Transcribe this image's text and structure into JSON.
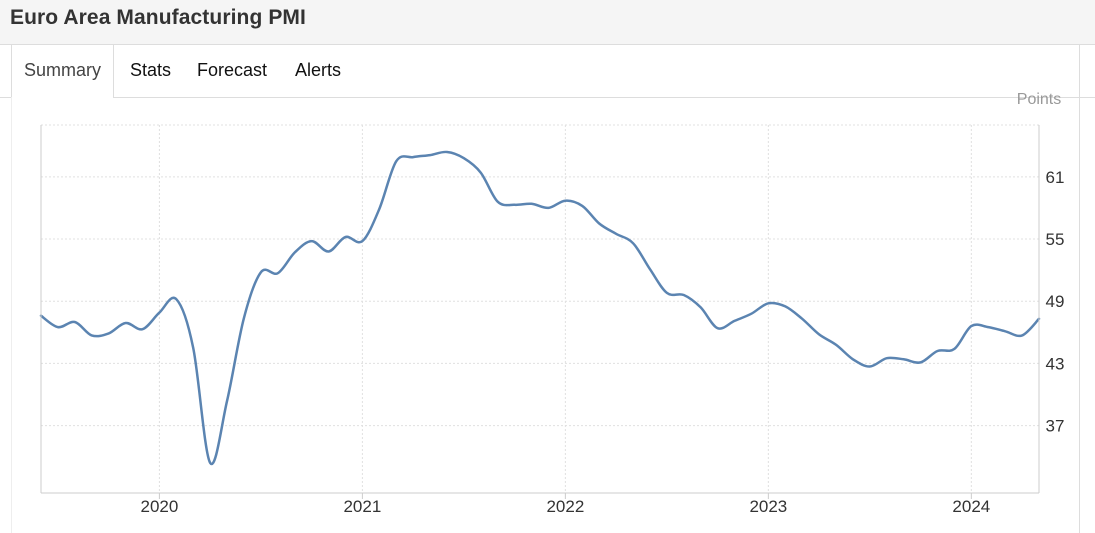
{
  "page": {
    "title": "Euro Area Manufacturing PMI"
  },
  "tabs": [
    {
      "label": "Summary",
      "active": true
    },
    {
      "label": "Stats",
      "active": false
    },
    {
      "label": "Forecast",
      "active": false
    },
    {
      "label": "Alerts",
      "active": false
    }
  ],
  "colors": {
    "line": "#5b84b1",
    "grid": "#e0e0e0",
    "axis": "#cccccc"
  },
  "chart_data": {
    "type": "line",
    "title": "",
    "xlabel": "",
    "ylabel": "Points",
    "grid": true,
    "xlim": [
      "2019-06",
      "2024-05"
    ],
    "ylim": [
      30.5,
      66
    ],
    "yticks": [
      37,
      43,
      49,
      55,
      61
    ],
    "xticks": [
      "2020",
      "2021",
      "2022",
      "2023",
      "2024"
    ],
    "series": [
      {
        "name": "",
        "x": [
          "2019-06",
          "2019-07",
          "2019-08",
          "2019-09",
          "2019-10",
          "2019-11",
          "2019-12",
          "2020-01",
          "2020-02",
          "2020-03",
          "2020-04",
          "2020-05",
          "2020-06",
          "2020-07",
          "2020-08",
          "2020-09",
          "2020-10",
          "2020-11",
          "2020-12",
          "2021-01",
          "2021-02",
          "2021-03",
          "2021-04",
          "2021-05",
          "2021-06",
          "2021-07",
          "2021-08",
          "2021-09",
          "2021-10",
          "2021-11",
          "2021-12",
          "2022-01",
          "2022-02",
          "2022-03",
          "2022-04",
          "2022-05",
          "2022-06",
          "2022-07",
          "2022-08",
          "2022-09",
          "2022-10",
          "2022-11",
          "2022-12",
          "2023-01",
          "2023-02",
          "2023-03",
          "2023-04",
          "2023-05",
          "2023-06",
          "2023-07",
          "2023-08",
          "2023-09",
          "2023-10",
          "2023-11",
          "2023-12",
          "2024-01",
          "2024-02",
          "2024-03",
          "2024-04",
          "2024-05"
        ],
        "values": [
          47.6,
          46.5,
          47.0,
          45.7,
          45.9,
          46.9,
          46.3,
          47.9,
          49.2,
          44.5,
          33.4,
          39.4,
          47.4,
          51.8,
          51.7,
          53.7,
          54.8,
          53.8,
          55.2,
          54.8,
          57.9,
          62.5,
          62.9,
          63.1,
          63.4,
          62.8,
          61.4,
          58.6,
          58.3,
          58.4,
          58.0,
          58.7,
          58.2,
          56.5,
          55.5,
          54.6,
          52.1,
          49.8,
          49.6,
          48.4,
          46.4,
          47.1,
          47.8,
          48.8,
          48.5,
          47.3,
          45.8,
          44.8,
          43.4,
          42.7,
          43.5,
          43.4,
          43.1,
          44.2,
          44.4,
          46.6,
          46.5,
          46.1,
          45.7,
          47.3
        ]
      }
    ]
  }
}
